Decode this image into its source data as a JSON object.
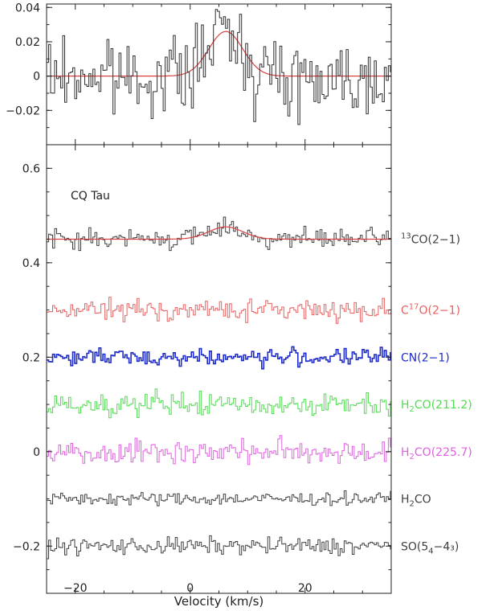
{
  "chart_data": [
    {
      "type": "line",
      "panel": "top",
      "xlim": [
        -25,
        35
      ],
      "ylim": [
        -0.04,
        0.042
      ],
      "yticks": [
        {
          "v": -0.02,
          "label": "−0.02"
        },
        {
          "v": 0,
          "label": "0"
        },
        {
          "v": 0.02,
          "label": "0.02"
        },
        {
          "v": 0.04,
          "label": "0.04"
        }
      ],
      "gaussian_fit": {
        "amplitude": 0.026,
        "center": 6.2,
        "fwhm": 7.0,
        "color": "#d94040"
      },
      "spectrum_rms": 0.011,
      "grid": false
    },
    {
      "type": "line",
      "panel": "bottom",
      "xlim": [
        -25,
        35
      ],
      "ylim": [
        -0.3,
        0.65
      ],
      "xlabel": "Velocity (km/s)",
      "xticks": [
        {
          "v": -20,
          "label": "−20"
        },
        {
          "v": 0,
          "label": "0"
        },
        {
          "v": 20,
          "label": "20"
        }
      ],
      "yticks": [
        {
          "v": -0.2,
          "label": "−0.2"
        },
        {
          "v": 0,
          "label": "0"
        },
        {
          "v": 0.2,
          "label": "0.2"
        },
        {
          "v": 0.4,
          "label": "0.4"
        },
        {
          "v": 0.6,
          "label": "0.6"
        }
      ],
      "annotation": "CQ Tau",
      "grid": false,
      "series": [
        {
          "label": {
            "pre": "",
            "sup": "13",
            "sub": "",
            "post": "CO(2−1)"
          },
          "offset": 0.45,
          "color": "#404040",
          "rms": 0.01,
          "fit": {
            "amplitude": 0.026,
            "center": 6.2,
            "fwhm": 7.0,
            "color": "#d94040"
          }
        },
        {
          "label": {
            "pre": "C",
            "sup": "17",
            "sub": "",
            "post": "O(2−1)"
          },
          "offset": 0.3,
          "color": "#e86060",
          "rms": 0.011
        },
        {
          "label": {
            "pre": "CN(2−1)",
            "sup": "",
            "sub": "",
            "post": ""
          },
          "offset": 0.2,
          "color": "#1f2ccc",
          "rms": 0.009
        },
        {
          "label": {
            "pre": "H",
            "sup": "",
            "sub": "2",
            "post": "CO(211.2)"
          },
          "offset": 0.1,
          "color": "#4fdc4f",
          "rms": 0.012
        },
        {
          "label": {
            "pre": "H",
            "sup": "",
            "sub": "2",
            "post": "CO(225.7)"
          },
          "offset": 0.0,
          "color": "#e060e0",
          "rms": 0.013
        },
        {
          "label": {
            "pre": "H",
            "sup": "",
            "sub": "2",
            "post": "CO"
          },
          "offset": -0.1,
          "color": "#404040",
          "rms": 0.007
        },
        {
          "label": {
            "pre": "SO(5",
            "sup": "",
            "sub": "4",
            "post": "−4₃)"
          },
          "offset": -0.2,
          "color": "#404040",
          "rms": 0.009
        }
      ]
    }
  ]
}
